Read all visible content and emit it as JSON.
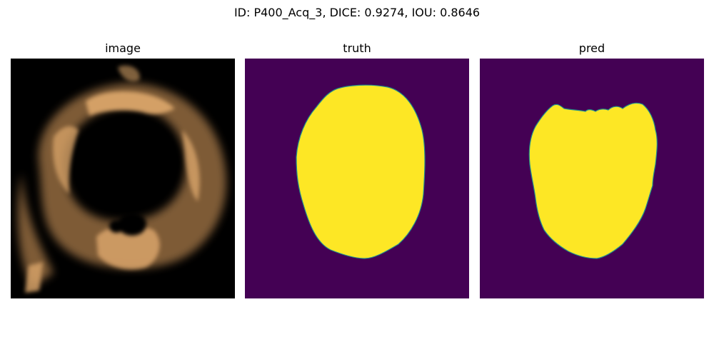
{
  "figure": {
    "suptitle": "ID: P400_Acq_3, DICE: 0.9274, IOU: 0.8646"
  },
  "panels": [
    {
      "title": "image",
      "content": "echocardiogram-frame"
    },
    {
      "title": "truth",
      "content": "ground-truth-mask"
    },
    {
      "title": "pred",
      "content": "predicted-mask"
    }
  ],
  "colors": {
    "mask_background": "#440154",
    "mask_foreground": "#fde725",
    "mask_edge": "#21918c",
    "image_background": "#000000",
    "tissue": "#c9955a"
  }
}
